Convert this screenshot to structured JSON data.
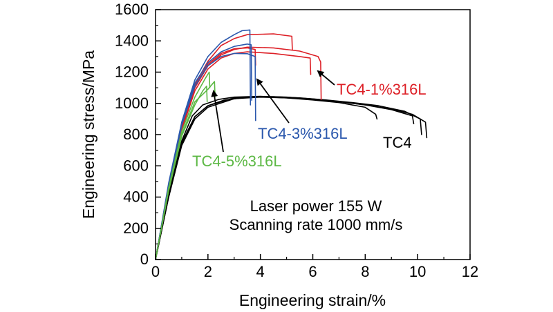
{
  "chart_data": {
    "type": "line",
    "title": "",
    "xlabel": "Engineering strain/%",
    "ylabel": "Engineering stress/MPa",
    "xlim": [
      0,
      12
    ],
    "ylim": [
      0,
      1600
    ],
    "xticks": [
      0,
      2,
      4,
      6,
      8,
      10,
      12
    ],
    "yticks": [
      0,
      200,
      400,
      600,
      800,
      1000,
      1200,
      1400,
      1600
    ],
    "grid": false,
    "legend": "none",
    "annotations": {
      "line1": "Laser power 155 W",
      "line2": "Scanning rate 1000 mm/s"
    },
    "series": [
      {
        "name": "TC4",
        "color": "#000000",
        "curves": [
          [
            [
              0,
              0
            ],
            [
              0.5,
              420
            ],
            [
              1.0,
              760
            ],
            [
              1.4,
              920
            ],
            [
              1.8,
              990
            ],
            [
              2.4,
              1025
            ],
            [
              3,
              1040
            ],
            [
              4,
              1045
            ],
            [
              5,
              1040
            ],
            [
              6,
              1028
            ],
            [
              7,
              1012
            ],
            [
              8,
              990
            ],
            [
              9,
              965
            ],
            [
              9.8,
              930
            ],
            [
              10.3,
              880
            ],
            [
              10.35,
              780
            ]
          ],
          [
            [
              0,
              0
            ],
            [
              0.5,
              400
            ],
            [
              1.0,
              740
            ],
            [
              1.5,
              915
            ],
            [
              2,
              985
            ],
            [
              2.6,
              1020
            ],
            [
              3.5,
              1040
            ],
            [
              4.5,
              1042
            ],
            [
              5.5,
              1035
            ],
            [
              6.5,
              1022
            ],
            [
              7.5,
              1005
            ],
            [
              8.5,
              985
            ],
            [
              9.5,
              950
            ],
            [
              10.1,
              900
            ],
            [
              10.15,
              800
            ]
          ],
          [
            [
              0,
              0
            ],
            [
              0.5,
              410
            ],
            [
              1.0,
              750
            ],
            [
              1.5,
              915
            ],
            [
              2,
              985
            ],
            [
              3,
              1035
            ],
            [
              4,
              1042
            ],
            [
              5,
              1035
            ],
            [
              6,
              1022
            ],
            [
              7,
              1005
            ],
            [
              8,
              975
            ],
            [
              8.4,
              930
            ],
            [
              8.45,
              900
            ]
          ],
          [
            [
              0,
              0
            ],
            [
              0.5,
              400
            ],
            [
              1.0,
              730
            ],
            [
              1.5,
              900
            ],
            [
              2,
              975
            ],
            [
              3,
              1030
            ],
            [
              4,
              1040
            ],
            [
              5,
              1035
            ],
            [
              6,
              1025
            ],
            [
              7,
              1010
            ],
            [
              8,
              990
            ],
            [
              9,
              960
            ],
            [
              9.8,
              920
            ],
            [
              9.85,
              870
            ]
          ]
        ]
      },
      {
        "name": "TC4-1%316L",
        "color": "#dd1f26",
        "curves": [
          [
            [
              0,
              0
            ],
            [
              0.5,
              470
            ],
            [
              1,
              860
            ],
            [
              1.5,
              1120
            ],
            [
              2,
              1270
            ],
            [
              2.5,
              1370
            ],
            [
              3,
              1415
            ],
            [
              3.5,
              1440
            ],
            [
              4.5,
              1445
            ],
            [
              5.2,
              1430
            ],
            [
              5.22,
              1345
            ]
          ],
          [
            [
              0,
              0
            ],
            [
              0.5,
              460
            ],
            [
              1,
              840
            ],
            [
              1.5,
              1100
            ],
            [
              2,
              1240
            ],
            [
              2.5,
              1310
            ],
            [
              3,
              1345
            ],
            [
              3.5,
              1360
            ],
            [
              4.5,
              1355
            ],
            [
              5.5,
              1335
            ],
            [
              6.2,
              1300
            ],
            [
              6.3,
              1265
            ],
            [
              6.32,
              1025
            ]
          ],
          [
            [
              0,
              0
            ],
            [
              0.5,
              450
            ],
            [
              1,
              830
            ],
            [
              1.5,
              1080
            ],
            [
              2,
              1220
            ],
            [
              2.5,
              1290
            ],
            [
              3,
              1320
            ],
            [
              3.5,
              1330
            ],
            [
              4.5,
              1320
            ],
            [
              5.5,
              1300
            ],
            [
              5.9,
              1290
            ],
            [
              5.92,
              1185
            ]
          ],
          [
            [
              0,
              0
            ],
            [
              0.5,
              465
            ],
            [
              1,
              850
            ],
            [
              1.5,
              1110
            ],
            [
              2,
              1250
            ],
            [
              2.5,
              1320
            ],
            [
              3,
              1350
            ],
            [
              3.5,
              1355
            ],
            [
              3.8,
              1345
            ],
            [
              3.82,
              1245
            ]
          ]
        ]
      },
      {
        "name": "TC4-3%316L",
        "color": "#2b58ad",
        "curves": [
          [
            [
              0,
              0
            ],
            [
              0.5,
              490
            ],
            [
              1,
              880
            ],
            [
              1.5,
              1150
            ],
            [
              2,
              1300
            ],
            [
              2.5,
              1390
            ],
            [
              3,
              1440
            ],
            [
              3.3,
              1465
            ],
            [
              3.6,
              1470
            ],
            [
              3.62,
              990
            ]
          ],
          [
            [
              0,
              0
            ],
            [
              0.5,
              480
            ],
            [
              1,
              870
            ],
            [
              1.5,
              1130
            ],
            [
              2,
              1260
            ],
            [
              2.5,
              1330
            ],
            [
              3,
              1365
            ],
            [
              3.5,
              1380
            ],
            [
              3.65,
              1375
            ],
            [
              3.67,
              1020
            ]
          ],
          [
            [
              0,
              0
            ],
            [
              0.5,
              470
            ],
            [
              1,
              860
            ],
            [
              1.5,
              1110
            ],
            [
              2,
              1240
            ],
            [
              2.5,
              1300
            ],
            [
              3,
              1320
            ],
            [
              3.5,
              1318
            ],
            [
              3.8,
              1300
            ],
            [
              3.82,
              890
            ]
          ]
        ]
      },
      {
        "name": "TC4-5%316L",
        "color": "#5cb844",
        "curves": [
          [
            [
              0,
              0
            ],
            [
              0.5,
              460
            ],
            [
              1,
              820
            ],
            [
              1.5,
              1040
            ],
            [
              1.9,
              1160
            ],
            [
              2.05,
              1200
            ],
            [
              2.07,
              1100
            ]
          ],
          [
            [
              0,
              0
            ],
            [
              0.5,
              450
            ],
            [
              1,
              800
            ],
            [
              1.5,
              1010
            ],
            [
              2,
              1090
            ],
            [
              2.2,
              1130
            ],
            [
              2.25,
              1140
            ],
            [
              2.27,
              1040
            ]
          ],
          [
            [
              0,
              0
            ],
            [
              0.5,
              440
            ],
            [
              1,
              790
            ],
            [
              1.5,
              990
            ],
            [
              1.8,
              1080
            ],
            [
              1.95,
              1110
            ],
            [
              1.97,
              1010
            ]
          ]
        ]
      }
    ],
    "labels": [
      {
        "text": "TC4-1%316L",
        "series": "TC4-1%316L"
      },
      {
        "text": "TC4-3%316L",
        "series": "TC4-3%316L"
      },
      {
        "text": "TC4",
        "series": "TC4"
      },
      {
        "text": "TC4-5%316L",
        "series": "TC4-5%316L"
      }
    ]
  }
}
